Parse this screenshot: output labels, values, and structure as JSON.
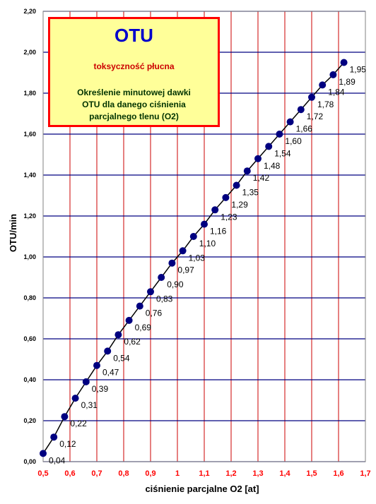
{
  "chart_data": {
    "type": "line",
    "title": "OTU",
    "subtitle": "toksyczność płucna",
    "description": "Określenie minutowej dawki\nOTU dla danego ciśnienia\nparcjalnego tlenu (O2)",
    "xlabel": "ciśnienie parcjalne O2 [at]",
    "ylabel": "OTU/min",
    "xlim": [
      0.5,
      1.7
    ],
    "ylim": [
      0,
      2.2
    ],
    "x_ticks": [
      "0,5",
      "0,6",
      "0,7",
      "0,8",
      "0,9",
      "1",
      "1,1",
      "1,2",
      "1,3",
      "1,4",
      "1,5",
      "1,6",
      "1,7"
    ],
    "y_ticks": [
      "0,00",
      "0,20",
      "0,40",
      "0,60",
      "0,80",
      "1,00",
      "1,20",
      "1,40",
      "1,60",
      "1,80",
      "2,00",
      "2,20"
    ],
    "x": [
      0.5,
      0.54,
      0.58,
      0.62,
      0.66,
      0.7,
      0.74,
      0.78,
      0.82,
      0.86,
      0.9,
      0.94,
      0.98,
      1.02,
      1.06,
      1.1,
      1.14,
      1.18,
      1.22,
      1.26,
      1.3,
      1.34,
      1.38,
      1.42,
      1.46,
      1.5,
      1.54,
      1.58,
      1.62
    ],
    "y": [
      0.04,
      0.12,
      0.22,
      0.31,
      0.39,
      0.47,
      0.54,
      0.62,
      0.69,
      0.76,
      0.83,
      0.9,
      0.97,
      1.03,
      1.1,
      1.16,
      1.23,
      1.29,
      1.35,
      1.42,
      1.48,
      1.54,
      1.6,
      1.66,
      1.72,
      1.78,
      1.84,
      1.89,
      1.95
    ],
    "point_labels": [
      "0,04",
      "0,12",
      "0,22",
      "0,31",
      "0,39",
      "0,47",
      "0,54",
      "0,62",
      "0,69",
      "0,76",
      "0,83",
      "0,90",
      "0,97",
      "1,03",
      "1,10",
      "1,16",
      "1,23",
      "1,29",
      "1,35",
      "1,42",
      "1,48",
      "1,54",
      "1,60",
      "1,66",
      "1,72",
      "1,78",
      "1,84",
      "1,89",
      "1,95"
    ],
    "grid": true,
    "colors": {
      "plot_background": "#ffffff",
      "vertical_grid": "#cc0000",
      "horizontal_grid": "#000080",
      "line": "#000000",
      "marker": "#000080",
      "x_tick_text": "#ff0000",
      "title_box_fill": "#ffff99",
      "title_box_border": "#ff0000",
      "title_color": "#0000cc",
      "subtitle_color": "#cc0000"
    }
  }
}
